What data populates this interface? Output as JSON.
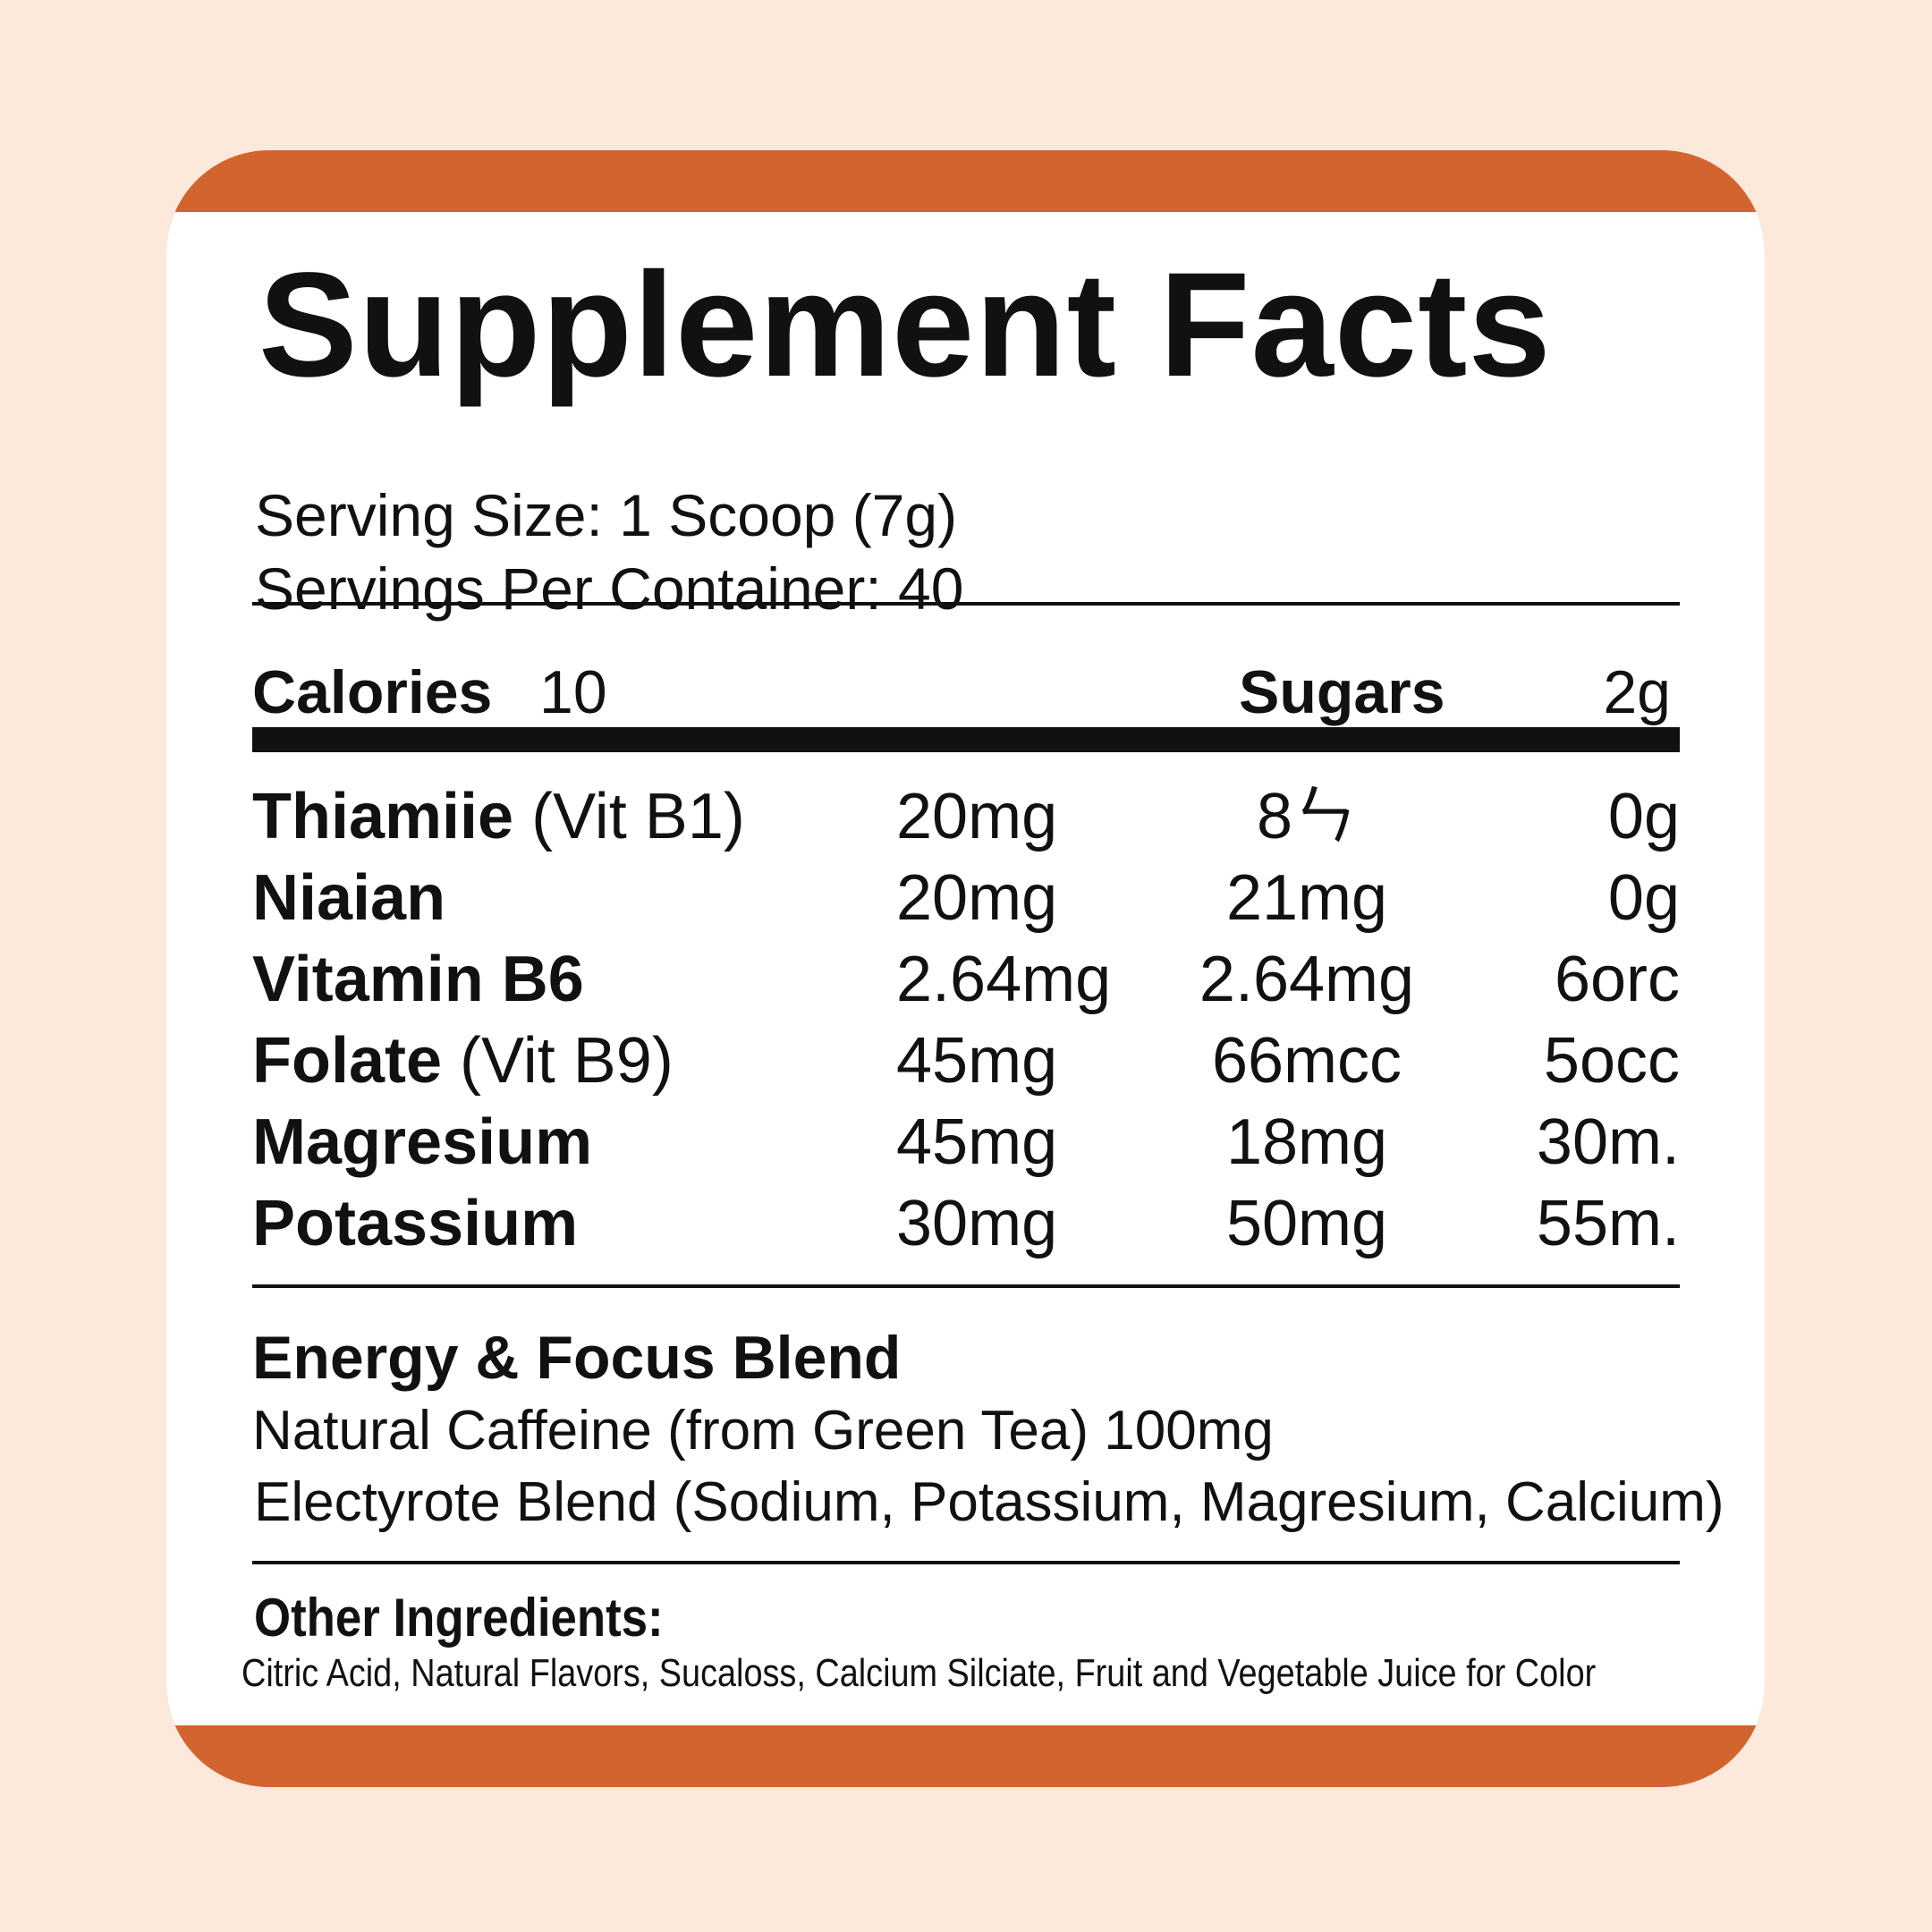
{
  "title": "Supplement Facts",
  "serving_size": "Serving Size: 1 Scoop (7g)",
  "servings_per_container": "Servings Per Container: 40",
  "calories": {
    "label": "Calories",
    "value": "10"
  },
  "sugars": {
    "label": "Sugars",
    "value": "2g"
  },
  "nutrients": [
    {
      "name": "Thiamiie",
      "note": "(Vit B1)",
      "col1": "20mg",
      "col2": "8ㄣ",
      "col3": "0g"
    },
    {
      "name": "Niaian",
      "note": "",
      "col1": "20mg",
      "col2": "21mg",
      "col3": "0g"
    },
    {
      "name": "Vitamin B6",
      "note": "",
      "col1": "2.64mg",
      "col2": "2.64mg",
      "col3": "6orc"
    },
    {
      "name": "Folate",
      "note": "(Vit B9)",
      "col1": "45mg",
      "col2": "66mcc",
      "col3": "5occ"
    },
    {
      "name": "Magresium",
      "note": "",
      "col1": "45mg",
      "col2": "18mg",
      "col3": "30m."
    },
    {
      "name": "Potassium",
      "note": "",
      "col1": "30mg",
      "col2": "50mg",
      "col3": "55m."
    }
  ],
  "blend": {
    "heading": "Energy & Focus Blend",
    "lines": [
      "Natural Caffeine (from Green Tea) 100mg",
      "Electyrote Blend (Sodium, Potassium, Magresium, Calcium)"
    ]
  },
  "other_ingredients": {
    "heading": "Other Ingredients:",
    "text": "Citric Acid, Natural Flavors, Sucaloss, Calcium Silciate, Fruit and Vegetable Juice for Color"
  },
  "colors": {
    "background": "#fde9dc",
    "accent": "#d2642f",
    "panel": "#ffffff",
    "text": "#111111"
  }
}
